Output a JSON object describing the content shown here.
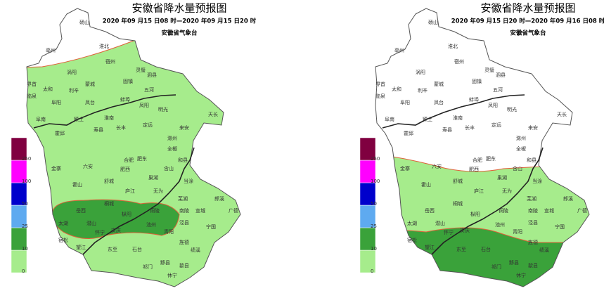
{
  "maps": [
    {
      "title": "安徽省降水量预报图",
      "subtitle": "2020 年09 月15 日08 时—2020 年09 月15 日20 时",
      "issuer": "安徽省气象台"
    },
    {
      "title": "安徽省降水量预报图",
      "subtitle": "2020 年09 月15 日20 时—2020 年09 月16 日08 时",
      "issuer": "安徽省气象台"
    }
  ],
  "legend": {
    "ticks": [
      0,
      10,
      25,
      50,
      100,
      250
    ],
    "colors": [
      "#a6ec8c",
      "#3aa23a",
      "#5eaaf0",
      "#0000cc",
      "#ff00ff",
      "#800040"
    ]
  },
  "place_names": [
    "砀山",
    "亳州",
    "淮北",
    "涡阳",
    "宿州",
    "灵璧",
    "泗县",
    "蒙城",
    "固镇",
    "界首",
    "太和",
    "利辛",
    "临泉",
    "阜阳",
    "凤台",
    "五河",
    "蚌埠",
    "凤阳",
    "阜南",
    "颍上",
    "淮南",
    "寿县",
    "长丰",
    "定远",
    "明光",
    "天长",
    "来安",
    "滁州",
    "全椒",
    "霍邱",
    "金寨",
    "六安",
    "合肥",
    "肥东",
    "肥西",
    "含山",
    "和县",
    "巢湖",
    "舒城",
    "霍山",
    "庐江",
    "无为",
    "当涂",
    "芜湖",
    "宣城",
    "郎溪",
    "广德",
    "岳西",
    "桐城",
    "枞阳",
    "铜陵",
    "南陵",
    "泾县",
    "宁国",
    "太湖",
    "潜山",
    "怀宁",
    "安庆",
    "池州",
    "青阳",
    "宿松",
    "望江",
    "东至",
    "石台",
    "旌德",
    "绩溪",
    "祁门",
    "黟县",
    "歙县",
    "休宁"
  ]
}
